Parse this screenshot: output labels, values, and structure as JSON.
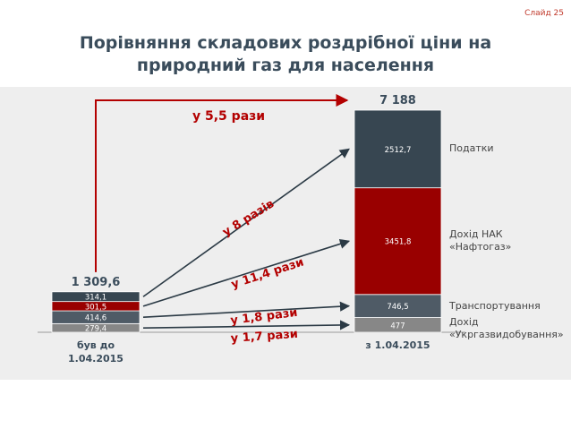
{
  "slide_label": "Слайд 25",
  "title_line1": "Порівняння складових роздрібної ціни на",
  "title_line2": "природний газ для населення",
  "chart_data": {
    "type": "bar",
    "stacked": true,
    "categories": [
      "був до\n1.04.2015",
      "з 1.04.2015"
    ],
    "totals": [
      "1 309,6",
      "7 188"
    ],
    "series": [
      {
        "name": "Дохід «Укргазвидобування»",
        "values": [
          279.4,
          477
        ],
        "labels": [
          "279,4",
          "477"
        ],
        "color": "#878787"
      },
      {
        "name": "Транспортування",
        "values": [
          414.6,
          746.5
        ],
        "labels": [
          "414,6",
          "746,5"
        ],
        "color": "#4f5b66"
      },
      {
        "name": "Дохід НАК «Нафтогаз»",
        "values": [
          301.5,
          3451.8
        ],
        "labels": [
          "301,5",
          "3451,8"
        ],
        "color": "#990000"
      },
      {
        "name": "Податки",
        "values": [
          314.1,
          2512.7
        ],
        "labels": [
          "314,1",
          "2512,7"
        ],
        "color": "#374651"
      }
    ],
    "growth_total": "у 5,5 рази",
    "growth_labels": [
      "у 8 разів",
      "у 11,4 рази",
      "у 1,8 рази",
      "у 1,7 рази"
    ],
    "legend_placement": "right"
  }
}
